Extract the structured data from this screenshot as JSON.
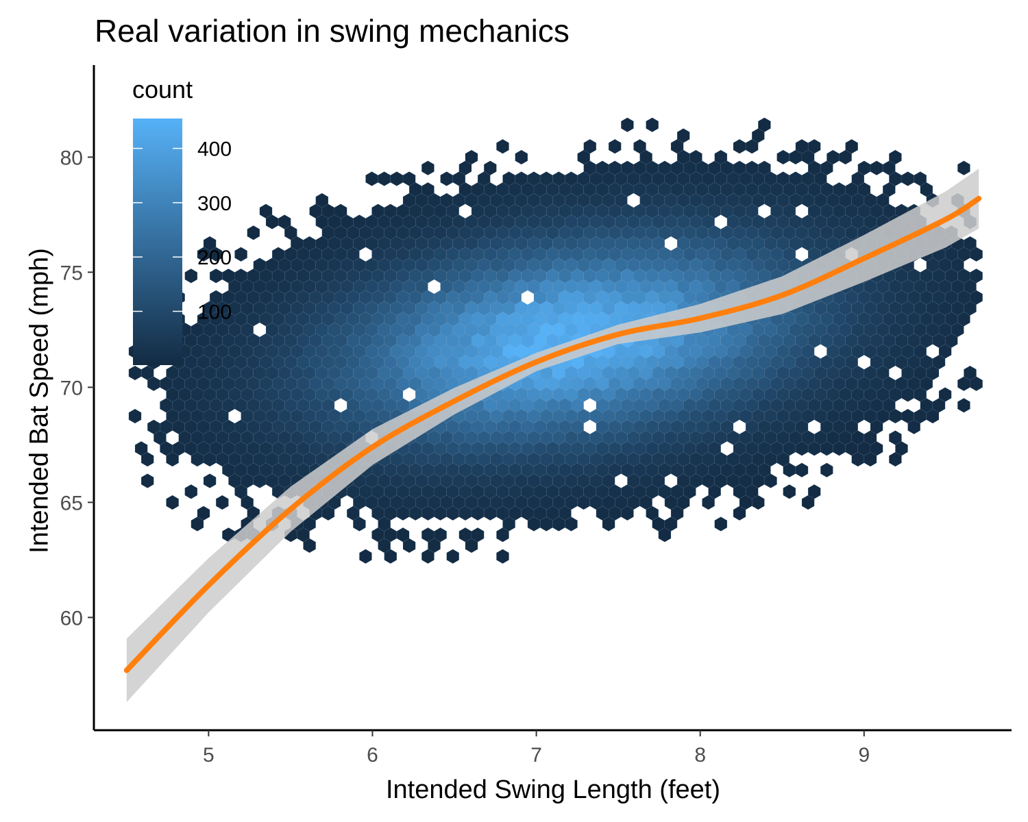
{
  "chart_data": {
    "type": "hexbin",
    "title": "Real variation in swing mechanics",
    "xlabel": "Intended Swing Length (feet)",
    "ylabel": "Intended Bat Speed (mph)",
    "xlim": [
      4.3,
      9.9
    ],
    "ylim": [
      55.1,
      84.0
    ],
    "x_ticks": [
      5,
      6,
      7,
      8,
      9
    ],
    "y_ticks": [
      60,
      65,
      70,
      75,
      80
    ],
    "legend": {
      "title": "count",
      "ticks": [
        100,
        200,
        300,
        400
      ],
      "range": [
        1,
        455
      ],
      "color_low": "#132B43",
      "color_high": "#56B1F7",
      "placement": "top-left inside"
    },
    "density_peak": {
      "x": 7.2,
      "y": 72.0
    },
    "smooth_line": {
      "color": "#FF7F0E",
      "ribbon_color": "#CCCCCC",
      "points": [
        {
          "x": 4.5,
          "y": 57.7
        },
        {
          "x": 5.0,
          "y": 61.4
        },
        {
          "x": 5.5,
          "y": 64.7
        },
        {
          "x": 6.0,
          "y": 67.4
        },
        {
          "x": 6.5,
          "y": 69.4
        },
        {
          "x": 7.0,
          "y": 71.1
        },
        {
          "x": 7.5,
          "y": 72.3
        },
        {
          "x": 8.0,
          "y": 73.0
        },
        {
          "x": 8.5,
          "y": 74.0
        },
        {
          "x": 9.0,
          "y": 75.6
        },
        {
          "x": 9.5,
          "y": 77.3
        },
        {
          "x": 9.7,
          "y": 78.2
        }
      ]
    },
    "grid": false
  }
}
